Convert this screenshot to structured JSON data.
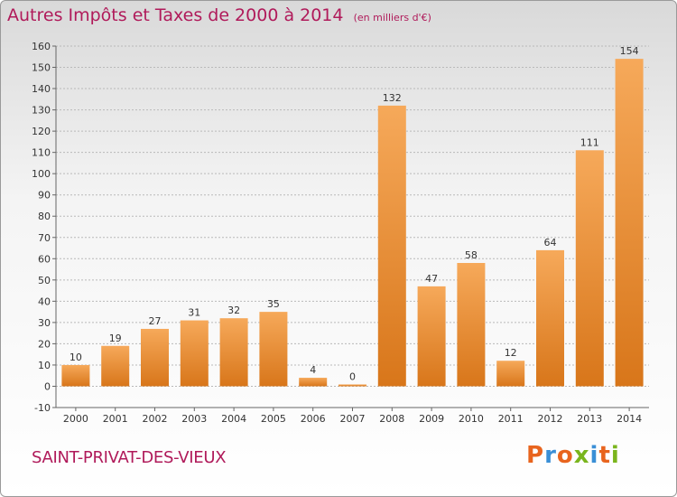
{
  "title": "Autres Impôts et Taxes de 2000 à 2014",
  "unit_note": "(en milliers d'€)",
  "commune": "SAINT-PRIVAT-DES-VIEUX",
  "brand": "Proxiti",
  "colors": {
    "title": "#b01a5a",
    "bar_light": "#f6a95a",
    "bar_dark": "#d8761a",
    "brand_letters": [
      "#e8641e",
      "#3a8fd6",
      "#e8641e",
      "#7ab51d",
      "#3a8fd6",
      "#e8641e",
      "#7ab51d"
    ]
  },
  "chart_data": {
    "type": "bar",
    "categories": [
      "2000",
      "2001",
      "2002",
      "2003",
      "2004",
      "2005",
      "2006",
      "2007",
      "2008",
      "2009",
      "2010",
      "2011",
      "2012",
      "2013",
      "2014"
    ],
    "values": [
      10,
      19,
      27,
      31,
      32,
      35,
      4,
      0,
      132,
      47,
      58,
      12,
      64,
      111,
      154
    ],
    "ylim": [
      -10,
      160
    ],
    "yticks": [
      -10,
      0,
      10,
      20,
      30,
      40,
      50,
      60,
      70,
      80,
      90,
      100,
      110,
      120,
      130,
      140,
      150,
      160
    ],
    "grid": true,
    "data_labels": true
  }
}
